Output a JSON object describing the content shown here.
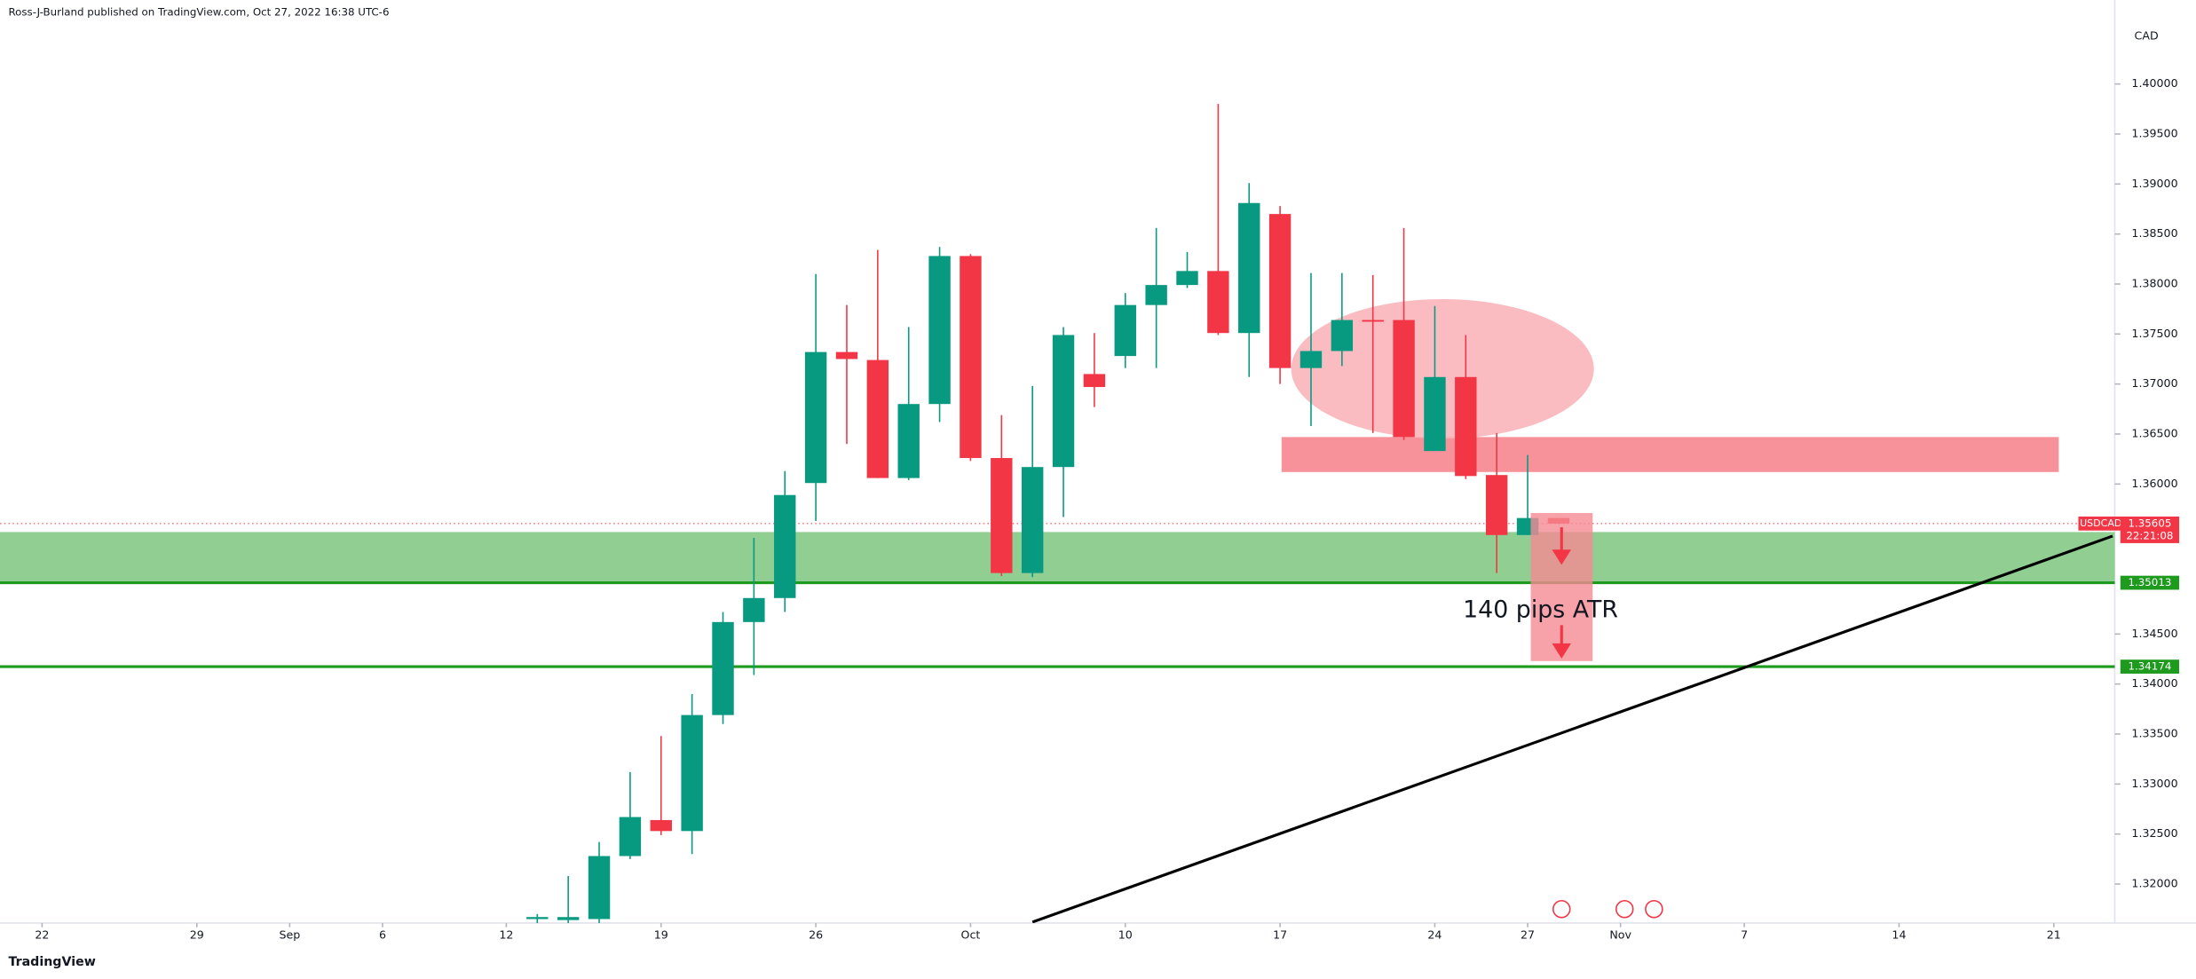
{
  "header": "Ross-J-Burland published on TradingView.com, Oct 27, 2022 16:38 UTC-6",
  "brand": "TradingView",
  "chart_data": {
    "type": "candlestick",
    "symbol": "USDCAD",
    "currency": "CAD",
    "up_color": "#089981",
    "down_color": "#f23645",
    "x": [
      16,
      17,
      18,
      19,
      20,
      21,
      22,
      23,
      24,
      25,
      26,
      27,
      28,
      29,
      30,
      31,
      32,
      33,
      34,
      35,
      36,
      37,
      38,
      39,
      40,
      41,
      42,
      43,
      44,
      45,
      46,
      47,
      48,
      49
    ],
    "open": [
      1.3165,
      1.3164,
      1.3165,
      1.3228,
      1.3264,
      1.3253,
      1.3369,
      1.3462,
      1.3486,
      1.3601,
      1.3732,
      1.3724,
      1.3606,
      1.368,
      1.3828,
      1.3626,
      1.3511,
      1.3617,
      1.371,
      1.3728,
      1.3779,
      1.3799,
      1.3813,
      1.3751,
      1.387,
      1.3716,
      1.3733,
      1.3764,
      1.3764,
      1.3633,
      1.3707,
      1.3609,
      1.3549,
      1.3566
    ],
    "high": [
      1.317,
      1.3208,
      1.3242,
      1.3312,
      1.3348,
      1.339,
      1.3472,
      1.3546,
      1.3613,
      1.381,
      1.3779,
      1.3834,
      1.3757,
      1.3837,
      1.383,
      1.3669,
      1.3698,
      1.3757,
      1.3751,
      1.3791,
      1.3856,
      1.3832,
      1.398,
      1.3901,
      1.3878,
      1.3811,
      1.3811,
      1.3809,
      1.3856,
      1.3778,
      1.3749,
      1.3651,
      1.3629,
      1.3566
    ],
    "low": [
      1.316,
      1.315,
      1.316,
      1.3225,
      1.3249,
      1.323,
      1.336,
      1.3409,
      1.3472,
      1.3563,
      1.364,
      1.3606,
      1.3604,
      1.3662,
      1.3623,
      1.3508,
      1.3507,
      1.3567,
      1.3677,
      1.3716,
      1.3716,
      1.3796,
      1.3749,
      1.3707,
      1.37,
      1.3658,
      1.3718,
      1.3651,
      1.3644,
      1.3633,
      1.3605,
      1.3511,
      1.3549,
      1.356
    ],
    "close": [
      1.3167,
      1.3167,
      1.3228,
      1.3267,
      1.3253,
      1.3369,
      1.3462,
      1.3486,
      1.3589,
      1.3732,
      1.3725,
      1.3606,
      1.368,
      1.3828,
      1.3626,
      1.3511,
      1.3617,
      1.3749,
      1.3697,
      1.3779,
      1.3799,
      1.3813,
      1.3751,
      1.3881,
      1.3716,
      1.3733,
      1.3764,
      1.3763,
      1.3647,
      1.3707,
      1.3608,
      1.3549,
      1.3566,
      1.35605
    ],
    "last_label": "1.35605",
    "countdown": "22:21:08",
    "xlim": [
      -1.36,
      66.97
    ],
    "ylim": [
      1.3161,
      1.4084
    ],
    "xticks": [
      {
        "value": 0,
        "label": "22"
      },
      {
        "value": 5,
        "label": "29"
      },
      {
        "value": 8,
        "label": "Sep"
      },
      {
        "value": 11,
        "label": "6"
      },
      {
        "value": 15,
        "label": "12"
      },
      {
        "value": 20,
        "label": "19"
      },
      {
        "value": 25,
        "label": "26"
      },
      {
        "value": 30,
        "label": "Oct"
      },
      {
        "value": 35,
        "label": "10"
      },
      {
        "value": 40,
        "label": "17"
      },
      {
        "value": 45,
        "label": "24"
      },
      {
        "value": 48,
        "label": "27"
      },
      {
        "value": 51,
        "label": "Nov"
      },
      {
        "value": 55,
        "label": "7"
      },
      {
        "value": 60,
        "label": "14"
      },
      {
        "value": 65,
        "label": "21"
      }
    ],
    "yticks": [
      {
        "value": 1.32,
        "label": "1.32000"
      },
      {
        "value": 1.325,
        "label": "1.32500"
      },
      {
        "value": 1.33,
        "label": "1.33000"
      },
      {
        "value": 1.335,
        "label": "1.33500"
      },
      {
        "value": 1.34,
        "label": "1.34000"
      },
      {
        "value": 1.345,
        "label": "1.34500"
      },
      {
        "value": 1.36,
        "label": "1.36000"
      },
      {
        "value": 1.365,
        "label": "1.36500"
      },
      {
        "value": 1.37,
        "label": "1.37000"
      },
      {
        "value": 1.375,
        "label": "1.37500"
      },
      {
        "value": 1.38,
        "label": "1.38000"
      },
      {
        "value": 1.385,
        "label": "1.38500"
      },
      {
        "value": 1.39,
        "label": "1.39000"
      },
      {
        "value": 1.395,
        "label": "1.39500"
      },
      {
        "value": 1.4,
        "label": "1.40000"
      }
    ],
    "annotations": {
      "hlines": [
        {
          "value": 1.35013,
          "label": "1.35013",
          "color": "#1e9a1e"
        },
        {
          "value": 1.34174,
          "label": "1.34174",
          "color": "#1e9a1e"
        }
      ],
      "support_zone": {
        "y": [
          1.35013,
          1.3552
        ],
        "color": "#8bcb8b"
      },
      "resistance_zone": {
        "x": [
          40.05,
          65.16
        ],
        "y": [
          1.3612,
          1.3647
        ],
        "color": "#f7868f"
      },
      "ellipse": {
        "cx": 45.25,
        "cy": 1.37151,
        "rx": 4.89,
        "ry": 0.00698,
        "color": "#f9b0b6"
      },
      "atr_box": {
        "x": [
          48.1,
          50.1
        ],
        "y": [
          1.3423,
          1.3571
        ],
        "color": "#f58a92",
        "label": "140 pips ATR"
      },
      "trend_line": {
        "x": [
          32.0,
          66.9
        ],
        "y": [
          1.3162,
          1.3548
        ],
        "color": "#000000"
      }
    }
  }
}
